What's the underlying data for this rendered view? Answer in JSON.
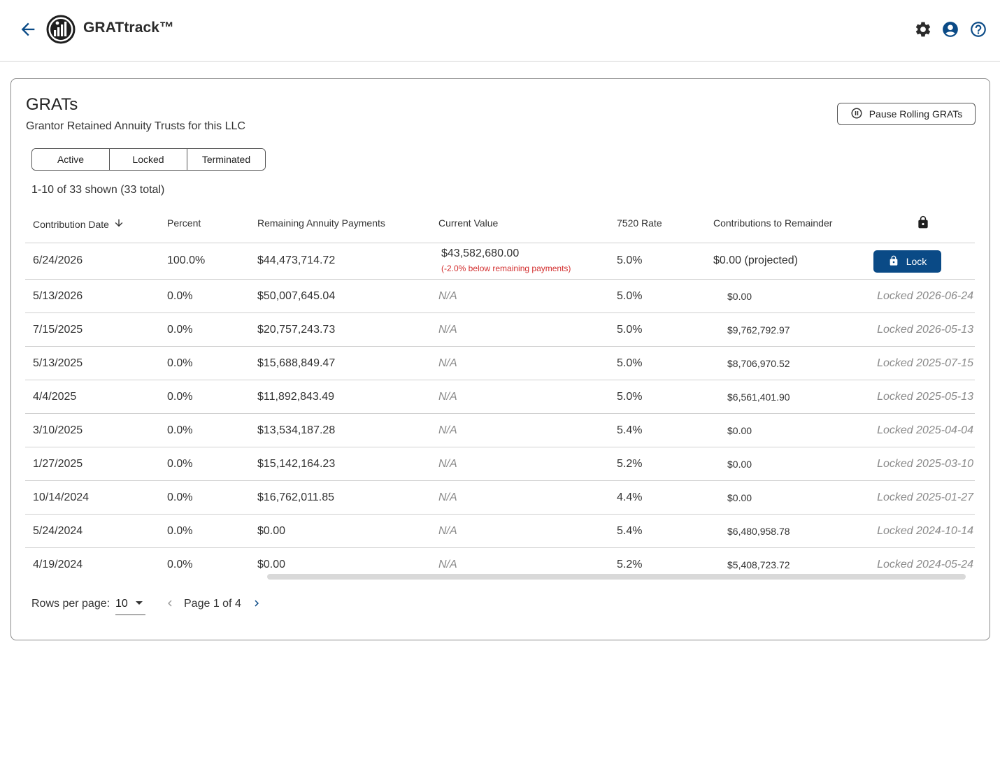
{
  "app": {
    "title": "GRATtrack™"
  },
  "colors": {
    "primary": "#0a4a86",
    "accent_icon": "#0a4a86",
    "warning": "#d32f2f"
  },
  "header_icons": [
    "back-arrow-icon",
    "settings-gear-icon",
    "account-icon",
    "help-icon"
  ],
  "card": {
    "title": "GRATs",
    "subtitle": "Grantor Retained Annuity Trusts for this LLC",
    "pause_button": "Pause Rolling GRATs",
    "tabs": [
      "Active",
      "Locked",
      "Terminated"
    ],
    "count_text": "1-10 of 33 shown (33 total)"
  },
  "table": {
    "columns": [
      "Contribution Date",
      "Percent",
      "Remaining Annuity Payments",
      "Current Value",
      "7520 Rate",
      "Contributions to Remainder"
    ],
    "rows": [
      {
        "date": "6/24/2026",
        "percent": "100.0%",
        "remaining": "$44,473,714.72",
        "current_value": "$43,582,680.00",
        "current_note": "(-2.0% below remaining payments)",
        "rate": "5.0%",
        "remainder": "$0.00 (projected)",
        "action": "Lock"
      },
      {
        "date": "5/13/2026",
        "percent": "0.0%",
        "remaining": "$50,007,645.04",
        "current_value": "N/A",
        "rate": "5.0%",
        "remainder": "$0.00",
        "status": "Locked 2026-06-24"
      },
      {
        "date": "7/15/2025",
        "percent": "0.0%",
        "remaining": "$20,757,243.73",
        "current_value": "N/A",
        "rate": "5.0%",
        "remainder": "$9,762,792.97",
        "status": "Locked 2026-05-13"
      },
      {
        "date": "5/13/2025",
        "percent": "0.0%",
        "remaining": "$15,688,849.47",
        "current_value": "N/A",
        "rate": "5.0%",
        "remainder": "$8,706,970.52",
        "status": "Locked 2025-07-15"
      },
      {
        "date": "4/4/2025",
        "percent": "0.0%",
        "remaining": "$11,892,843.49",
        "current_value": "N/A",
        "rate": "5.0%",
        "remainder": "$6,561,401.90",
        "status": "Locked 2025-05-13"
      },
      {
        "date": "3/10/2025",
        "percent": "0.0%",
        "remaining": "$13,534,187.28",
        "current_value": "N/A",
        "rate": "5.4%",
        "remainder": "$0.00",
        "status": "Locked 2025-04-04"
      },
      {
        "date": "1/27/2025",
        "percent": "0.0%",
        "remaining": "$15,142,164.23",
        "current_value": "N/A",
        "rate": "5.2%",
        "remainder": "$0.00",
        "status": "Locked 2025-03-10"
      },
      {
        "date": "10/14/2024",
        "percent": "0.0%",
        "remaining": "$16,762,011.85",
        "current_value": "N/A",
        "rate": "4.4%",
        "remainder": "$0.00",
        "status": "Locked 2025-01-27"
      },
      {
        "date": "5/24/2024",
        "percent": "0.0%",
        "remaining": "$0.00",
        "current_value": "N/A",
        "rate": "5.4%",
        "remainder": "$6,480,958.78",
        "status": "Locked 2024-10-14"
      },
      {
        "date": "4/19/2024",
        "percent": "0.0%",
        "remaining": "$0.00",
        "current_value": "N/A",
        "rate": "5.2%",
        "remainder": "$5,408,723.72",
        "status": "Locked 2024-05-24"
      }
    ]
  },
  "pagination": {
    "rows_label": "Rows per page:",
    "rows_value": "10",
    "page_text": "Page 1 of 4"
  }
}
